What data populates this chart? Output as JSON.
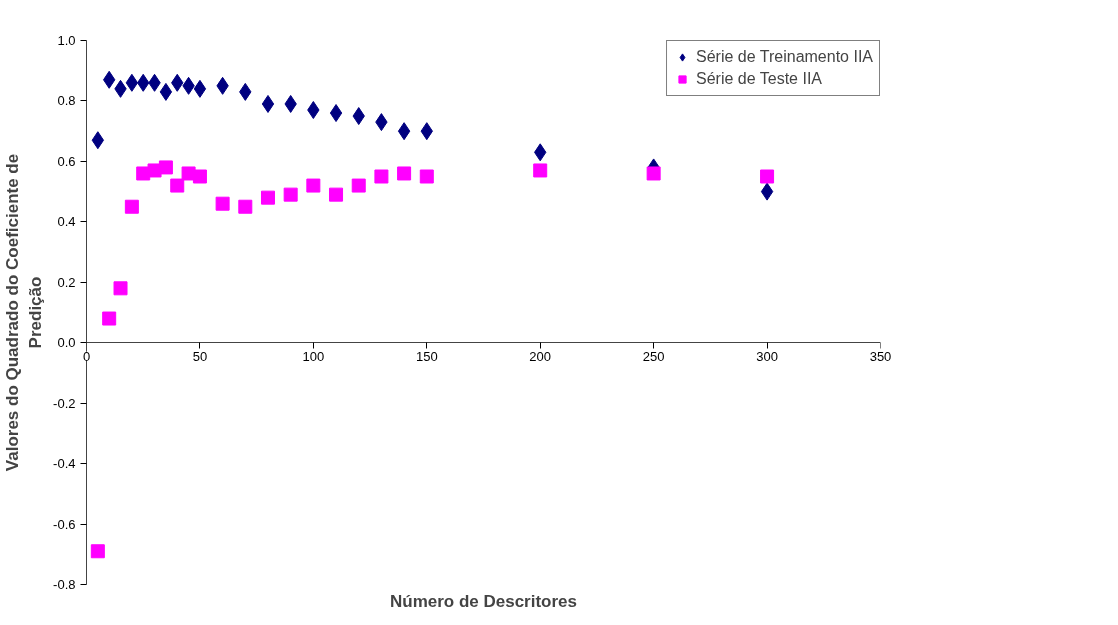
{
  "chart_data": {
    "type": "scatter",
    "xlabel": "Número de Descritores",
    "ylabel": "Valores do Quadrado do Coeficiente de Predição",
    "x": [
      5,
      10,
      15,
      20,
      25,
      30,
      35,
      40,
      45,
      50,
      60,
      70,
      80,
      90,
      100,
      110,
      120,
      130,
      140,
      150,
      200,
      250,
      300
    ],
    "series": [
      {
        "name": "Série de Treinamento IIA",
        "color": "#000080",
        "marker": "diamond",
        "values": [
          0.67,
          0.87,
          0.84,
          0.86,
          0.86,
          0.86,
          0.83,
          0.86,
          0.85,
          0.84,
          0.85,
          0.83,
          0.79,
          0.79,
          0.77,
          0.76,
          0.75,
          0.73,
          0.7,
          0.7,
          0.63,
          0.58,
          0.5
        ]
      },
      {
        "name": "Série de Teste IIA",
        "color": "#ff00ff",
        "marker": "square",
        "values": [
          -0.69,
          0.08,
          0.18,
          0.45,
          0.56,
          0.57,
          0.58,
          0.52,
          0.56,
          0.55,
          0.46,
          0.45,
          0.48,
          0.49,
          0.52,
          0.49,
          0.52,
          0.55,
          0.56,
          0.55,
          0.57,
          0.56,
          0.55
        ]
      }
    ],
    "xlim": [
      0,
      350
    ],
    "xticks": [
      0,
      50,
      100,
      150,
      200,
      250,
      300,
      350
    ],
    "ylim": [
      -0.8,
      1.0
    ],
    "yticks": [
      {
        "value": -0.8,
        "label": "-0.8"
      },
      {
        "value": -0.6,
        "label": "-0.6"
      },
      {
        "value": -0.4,
        "label": "-0.4"
      },
      {
        "value": -0.2,
        "label": "-0.2"
      },
      {
        "value": 0,
        "label": "0.0"
      },
      {
        "value": 0.2,
        "label": "0.2"
      },
      {
        "value": 0.4,
        "label": "0.4"
      },
      {
        "value": 0.6,
        "label": "0.6"
      },
      {
        "value": 0.8,
        "label": "0.8"
      },
      {
        "value": 1.0,
        "label": "1.0"
      }
    ],
    "grid": false,
    "legend": "top right"
  }
}
